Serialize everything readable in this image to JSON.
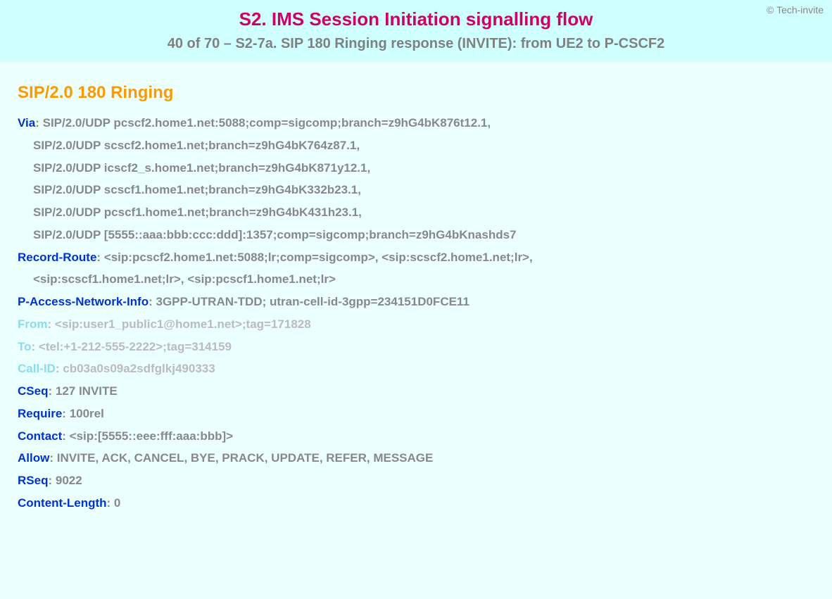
{
  "header": {
    "copyright": "© Tech-invite",
    "title_main": "S2. IMS Session Initiation signalling flow",
    "title_sub": "40 of 70 – S2-7a. SIP 180 Ringing response (INVITE): from UE2 to P-CSCF2"
  },
  "sip": {
    "title": "SIP/2.0 180 Ringing",
    "via": {
      "name": "Via",
      "lines": [
        "SIP/2.0/UDP pcscf2.home1.net:5088;comp=sigcomp;branch=z9hG4bK876t12.1,",
        "SIP/2.0/UDP scscf2.home1.net;branch=z9hG4bK764z87.1,",
        "SIP/2.0/UDP icscf2_s.home1.net;branch=z9hG4bK871y12.1,",
        "SIP/2.0/UDP scscf1.home1.net;branch=z9hG4bK332b23.1,",
        "SIP/2.0/UDP pcscf1.home1.net;branch=z9hG4bK431h23.1,",
        "SIP/2.0/UDP [5555::aaa:bbb:ccc:ddd]:1357;comp=sigcomp;branch=z9hG4bKnashds7"
      ]
    },
    "record_route": {
      "name": "Record-Route",
      "lines": [
        "<sip:pcscf2.home1.net:5088;lr;comp=sigcomp>, <sip:scscf2.home1.net;lr>,",
        "<sip:scscf1.home1.net;lr>, <sip:pcscf1.home1.net;lr>"
      ]
    },
    "p_access": {
      "name": "P-Access-Network-Info",
      "value": "3GPP-UTRAN-TDD; utran-cell-id-3gpp=234151D0FCE11"
    },
    "from": {
      "name": "From",
      "value": "<sip:user1_public1@home1.net>;tag=171828"
    },
    "to": {
      "name": "To",
      "value": "<tel:+1-212-555-2222>;tag=314159"
    },
    "call_id": {
      "name": "Call-ID",
      "value": "cb03a0s09a2sdfglkj490333"
    },
    "cseq": {
      "name": "CSeq",
      "value": "127 INVITE"
    },
    "require": {
      "name": "Require",
      "value": "100rel"
    },
    "contact": {
      "name": "Contact",
      "value": "<sip:[5555::eee:fff:aaa:bbb]>"
    },
    "allow": {
      "name": "Allow",
      "value": "INVITE, ACK, CANCEL, BYE, PRACK, UPDATE, REFER, MESSAGE"
    },
    "rseq": {
      "name": "RSeq",
      "value": "9022"
    },
    "content_length": {
      "name": "Content-Length",
      "value": "0"
    }
  },
  "style": {
    "bg_header": "#d0ffff",
    "bg_body": "#ecffff",
    "color_title_main": "#cc0066",
    "color_title_sub": "#808080",
    "color_sip_title": "#ff9900",
    "color_hdr_name": "#0033cc",
    "color_hdr_name_light": "#88ddee",
    "color_hdr_value": "#888888",
    "color_hdr_value_light": "#bbbbbb",
    "color_copyright": "#888888"
  }
}
